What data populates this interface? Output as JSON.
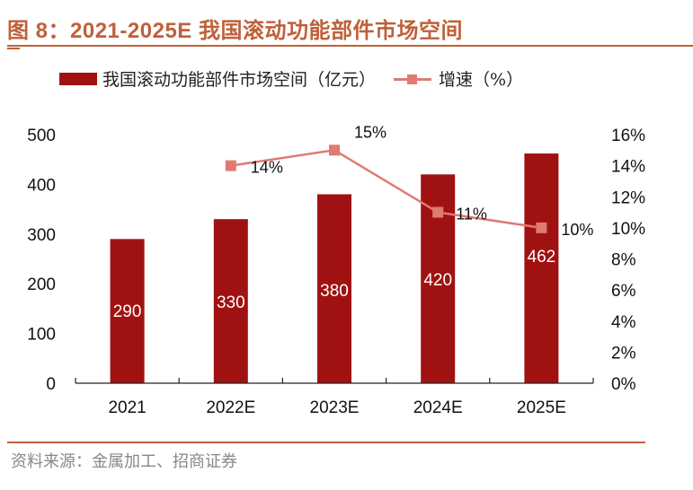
{
  "header": {
    "title": "图 8：2021-2025E 我国滚动功能部件市场空间"
  },
  "footer": {
    "source": "资料来源：金属加工、招商证券"
  },
  "colors": {
    "bar": "#a01212",
    "line": "#e07a72",
    "title": "#c0603a"
  },
  "chart_data": {
    "type": "bar",
    "title": "2021-2025E 我国滚动功能部件市场空间",
    "categories": [
      "2021",
      "2022E",
      "2023E",
      "2024E",
      "2025E"
    ],
    "legend_position": "top",
    "grid": false,
    "series": [
      {
        "name": "我国滚动功能部件市场空间（亿元）",
        "type": "bar",
        "axis": "left",
        "values": [
          290,
          330,
          380,
          420,
          462
        ],
        "labels": [
          "290",
          "330",
          "380",
          "420",
          "462"
        ]
      },
      {
        "name": "增速（%）",
        "type": "line",
        "axis": "right",
        "values": [
          null,
          14,
          15,
          11,
          10
        ],
        "labels": [
          "",
          "14%",
          "15%",
          "11%",
          "10%"
        ]
      }
    ],
    "y_left": {
      "range": [
        0,
        500
      ],
      "ticks": [
        "0",
        "100",
        "200",
        "300",
        "400",
        "500"
      ],
      "tick_values": [
        0,
        100,
        200,
        300,
        400,
        500
      ]
    },
    "y_right": {
      "range": [
        0,
        16
      ],
      "ticks": [
        "0%",
        "2%",
        "4%",
        "6%",
        "8%",
        "10%",
        "12%",
        "14%",
        "16%"
      ],
      "tick_values": [
        0,
        2,
        4,
        6,
        8,
        10,
        12,
        14,
        16
      ]
    },
    "xlabel": "",
    "ylabel": ""
  }
}
